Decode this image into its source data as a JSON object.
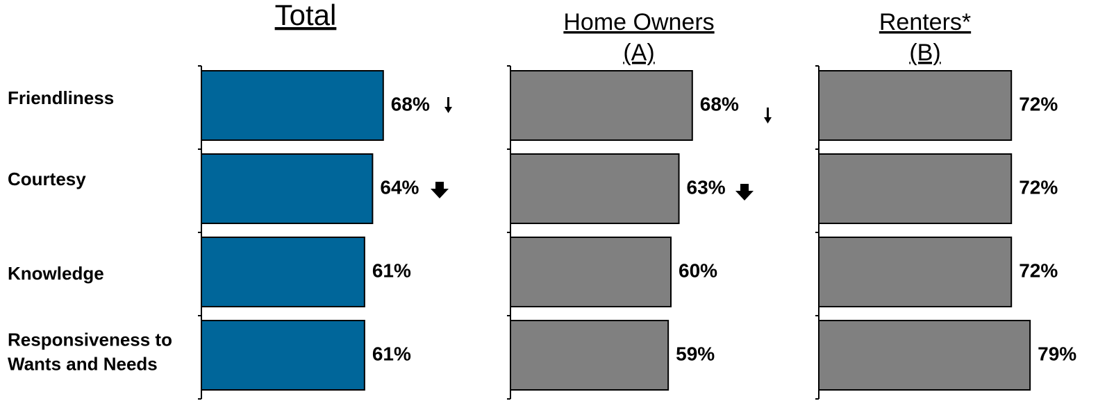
{
  "chart_data": {
    "type": "bar",
    "categories": [
      "Friendliness",
      "Courtesy",
      "Knowledge",
      "Responsiveness to\nWants and Needs"
    ],
    "xlim": [
      0,
      100
    ],
    "series": [
      {
        "name": "Total",
        "color": "#00669a",
        "values": [
          68,
          64,
          61,
          61
        ],
        "value_labels": [
          "68%",
          "64%",
          "61%",
          "61%"
        ]
      },
      {
        "name": "Home Owners\n(A)",
        "color": "#808080",
        "values": [
          68,
          63,
          60,
          59
        ],
        "value_labels": [
          "68%",
          "63%",
          "60%",
          "59%"
        ]
      },
      {
        "name": "Renters*\n(B)",
        "color": "#808080",
        "values": [
          72,
          72,
          72,
          79
        ],
        "value_labels": [
          "72%",
          "72%",
          "72%",
          "79%"
        ]
      }
    ]
  }
}
